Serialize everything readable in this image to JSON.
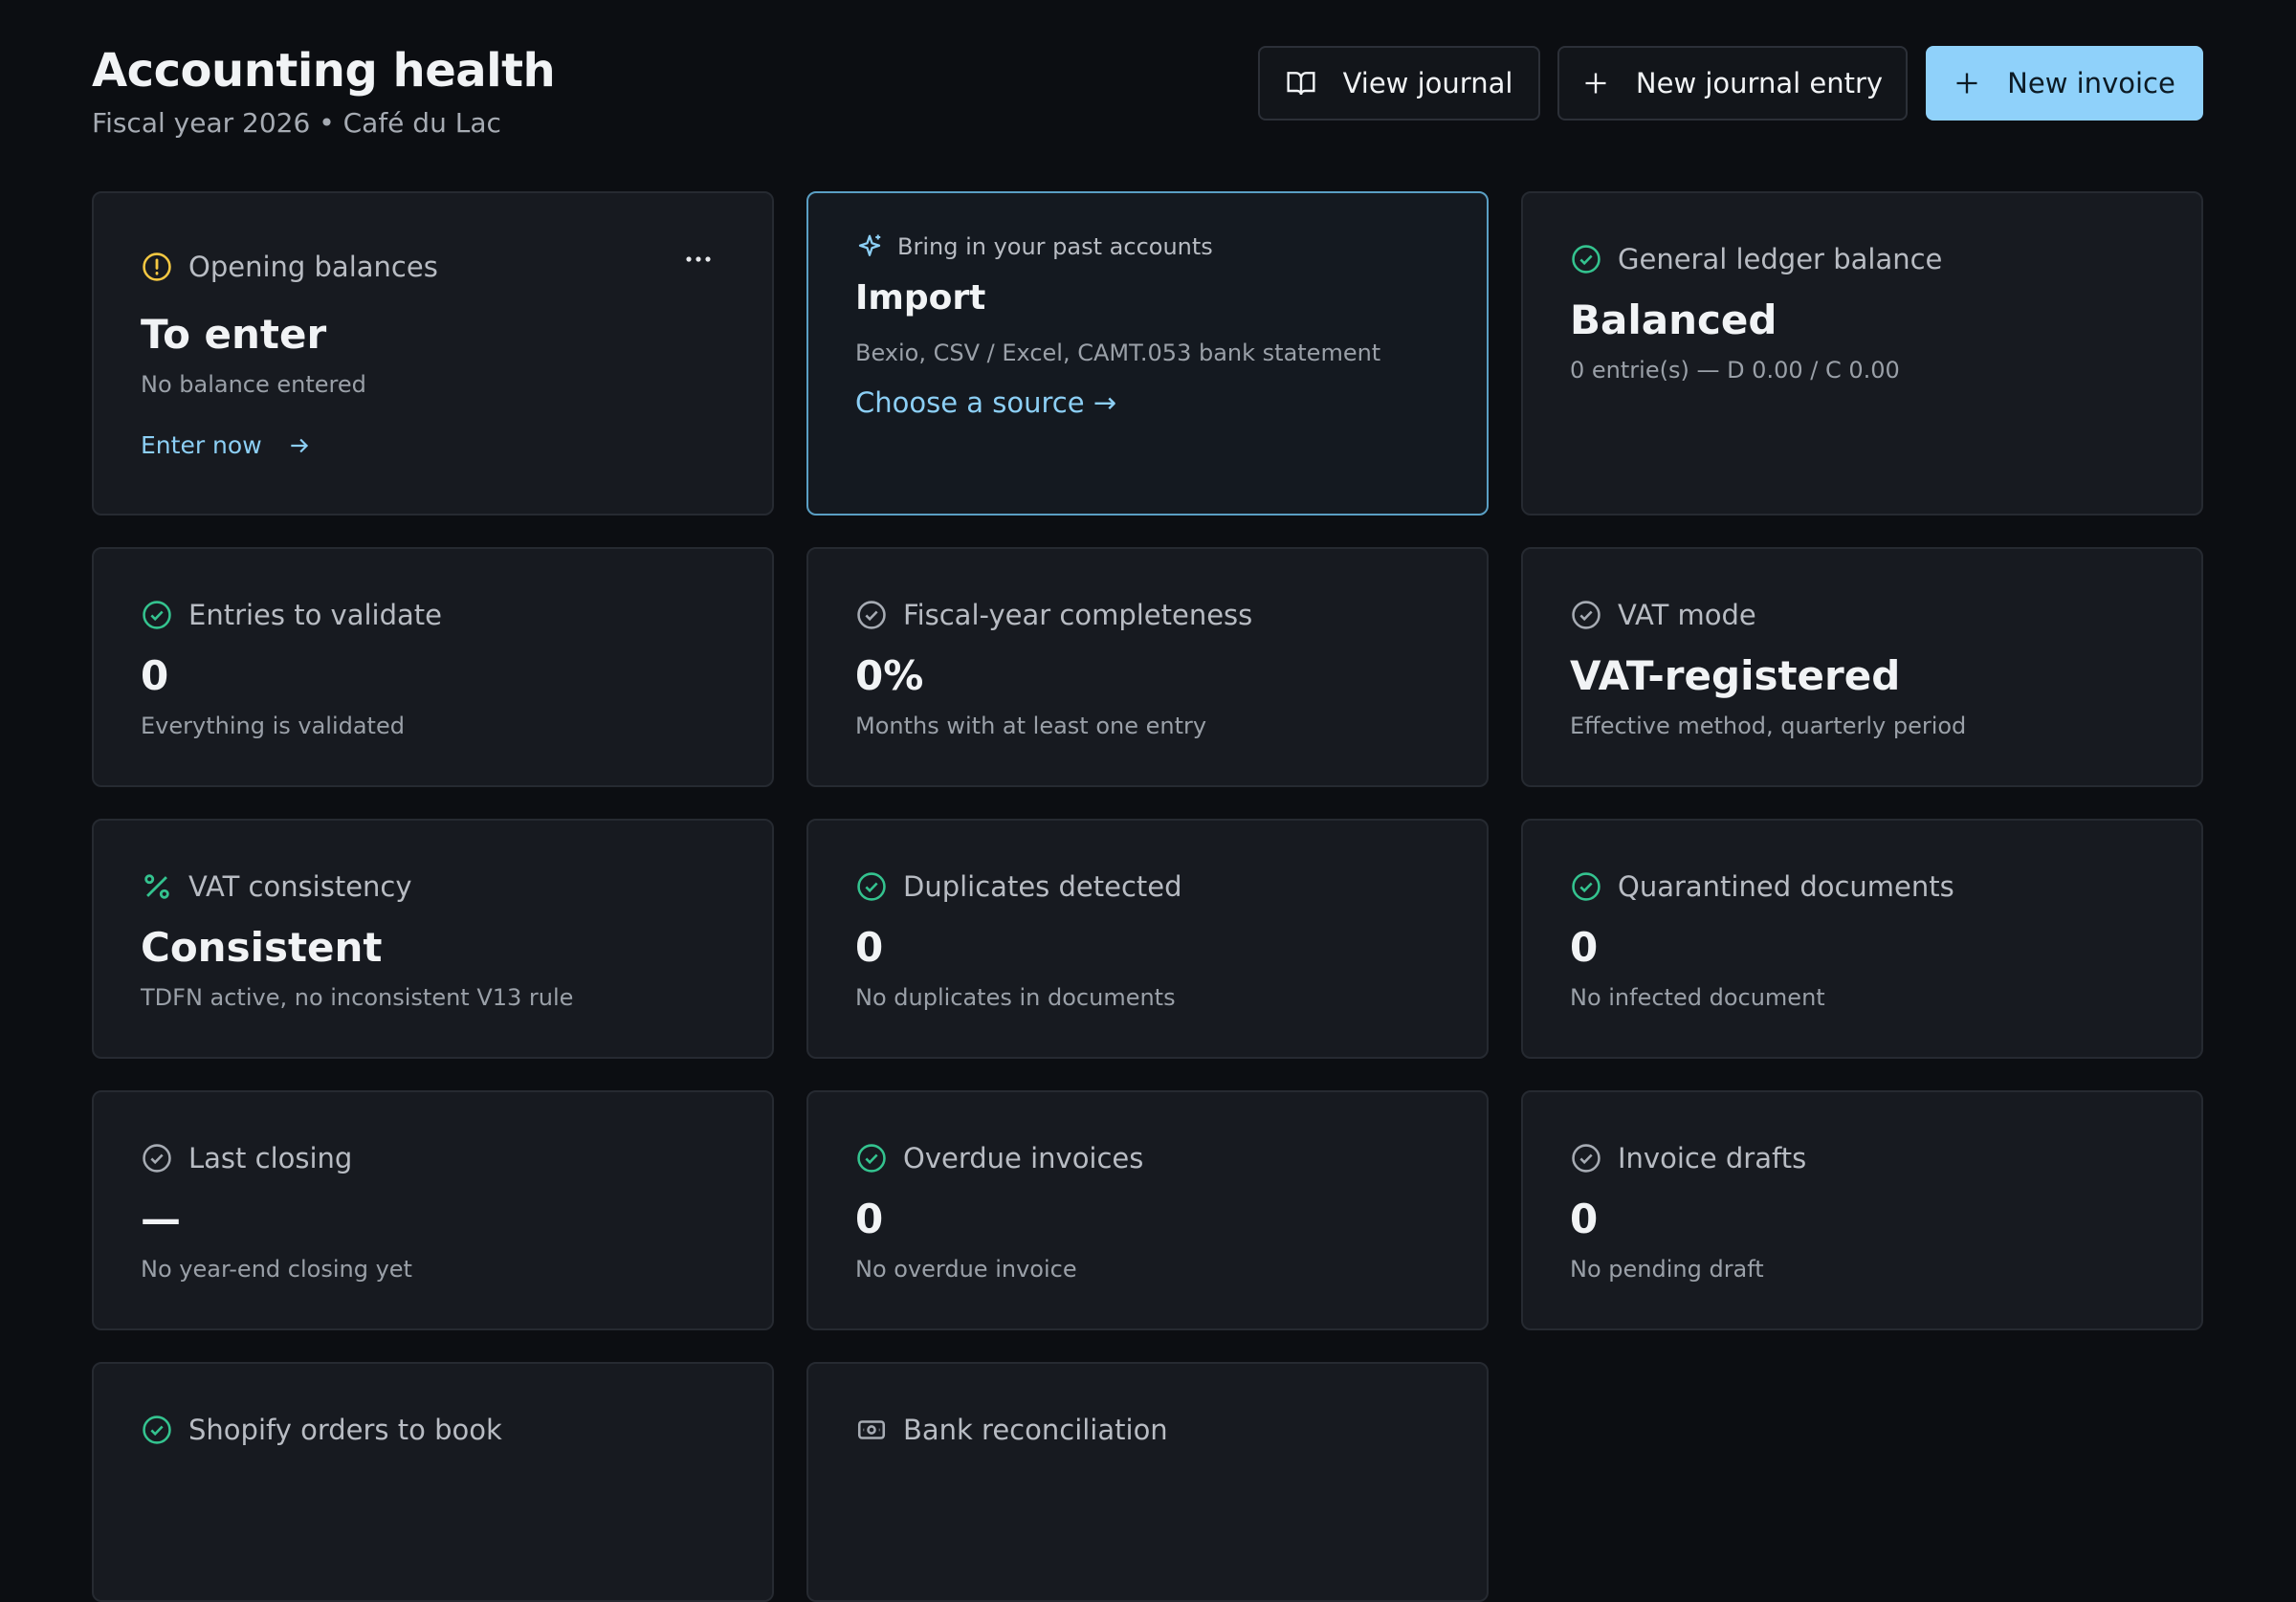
{
  "header": {
    "title": "Accounting health",
    "subtitle": "Fiscal year 2026 • Café du Lac"
  },
  "actions": [
    "View journal",
    "New journal entry",
    "New invoice"
  ],
  "cards": [
    {
      "label": "Opening balances",
      "value": "To enter",
      "subtitle": "No balance entered",
      "link": "Enter now"
    },
    {
      "label": "Bring in your past accounts",
      "value": "Import",
      "subtitle": "Bexio, CSV / Excel, CAMT.053 bank statement",
      "link": "Choose a source →"
    },
    {
      "label": "General ledger balance",
      "value": "Balanced",
      "subtitle": "0 entrie(s) — D 0.00 / C 0.00"
    },
    {
      "label": "Entries to validate",
      "value": "0",
      "subtitle": "Everything is validated"
    },
    {
      "label": "Fiscal-year completeness",
      "value": "0%",
      "subtitle": "Months with at least one entry"
    },
    {
      "label": "VAT mode",
      "value": "VAT-registered",
      "subtitle": "Effective method, quarterly period"
    },
    {
      "label": "VAT consistency",
      "value": "Consistent",
      "subtitle": "TDFN active, no inconsistent V13 rule"
    },
    {
      "label": "Duplicates detected",
      "value": "0",
      "subtitle": "No duplicates in documents"
    },
    {
      "label": "Quarantined documents",
      "value": "0",
      "subtitle": "No infected document"
    },
    {
      "label": "Last closing",
      "value": "—",
      "subtitle": "No year-end closing yet"
    },
    {
      "label": "Overdue invoices",
      "value": "0",
      "subtitle": "No overdue invoice"
    },
    {
      "label": "Invoice drafts",
      "value": "0",
      "subtitle": "No pending draft"
    },
    {
      "label": "Shopify orders to book"
    },
    {
      "label": "Bank reconciliation"
    }
  ]
}
